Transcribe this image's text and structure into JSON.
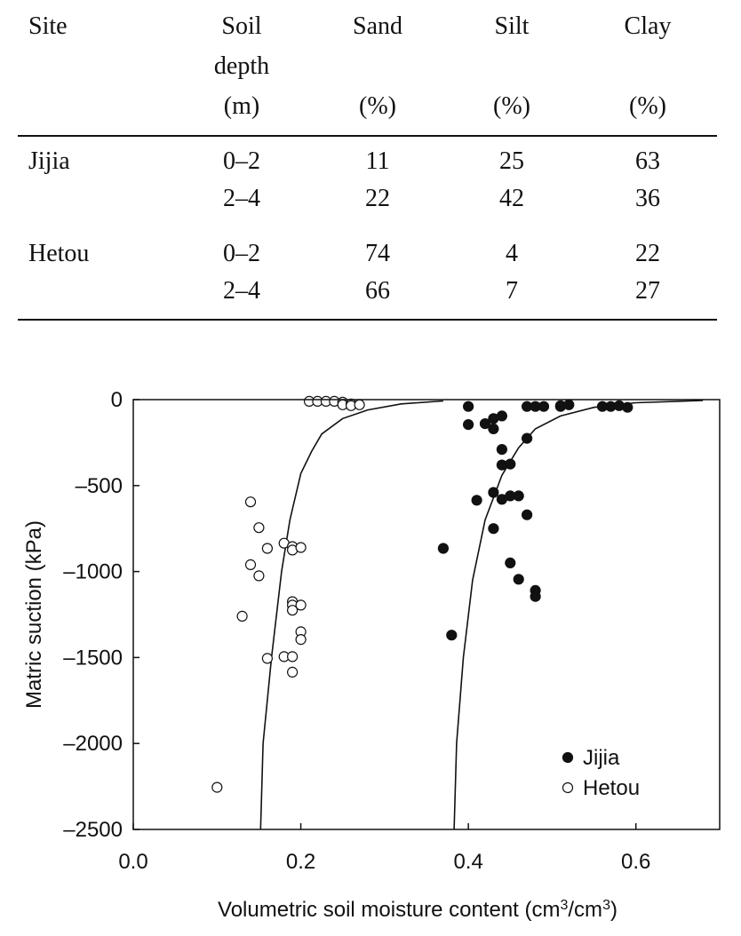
{
  "table": {
    "headers": {
      "site": "Site",
      "depth": [
        "Soil",
        "depth",
        "(m)"
      ],
      "sand": [
        "Sand",
        "(%)"
      ],
      "silt": [
        "Silt",
        "(%)"
      ],
      "clay": [
        "Clay",
        "(%)"
      ]
    },
    "rows": [
      {
        "site": "Jijia",
        "depth": "0–2",
        "sand": "11",
        "silt": "25",
        "clay": "63"
      },
      {
        "site": "",
        "depth": "2–4",
        "sand": "22",
        "silt": "42",
        "clay": "36"
      },
      {
        "site": "Hetou",
        "depth": "0–2",
        "sand": "74",
        "silt": "4",
        "clay": "22"
      },
      {
        "site": "",
        "depth": "2–4",
        "sand": "66",
        "silt": "7",
        "clay": "27"
      }
    ]
  },
  "chart_data": {
    "type": "scatter",
    "xlabel": "Volumetric soil moisture content (cm",
    "xlabel_sup1": "3",
    "xlabel_mid": "/cm",
    "xlabel_sup2": "3",
    "xlabel_end": ")",
    "ylabel": "Matric suction (kPa)",
    "xlim": [
      0.0,
      0.7
    ],
    "ylim": [
      -2500,
      0
    ],
    "x_ticks": [
      0.0,
      0.2,
      0.4,
      0.6
    ],
    "x_tick_labels": [
      "0.0",
      "0.2",
      "0.4",
      "0.6"
    ],
    "y_ticks": [
      0,
      -500,
      -1000,
      -1500,
      -2000,
      -2500
    ],
    "y_tick_labels": [
      "0",
      "–500",
      "–1000",
      "–1500",
      "–2000",
      "–2500"
    ],
    "legend_position": "bottom-right",
    "series": [
      {
        "name": "Jijia",
        "marker": "filled-circle",
        "points": [
          [
            0.4,
            -40
          ],
          [
            0.4,
            -145
          ],
          [
            0.42,
            -140
          ],
          [
            0.43,
            -110
          ],
          [
            0.43,
            -170
          ],
          [
            0.44,
            -95
          ],
          [
            0.44,
            -290
          ],
          [
            0.44,
            -380
          ],
          [
            0.45,
            -375
          ],
          [
            0.43,
            -540
          ],
          [
            0.44,
            -580
          ],
          [
            0.45,
            -560
          ],
          [
            0.46,
            -560
          ],
          [
            0.41,
            -585
          ],
          [
            0.47,
            -670
          ],
          [
            0.43,
            -750
          ],
          [
            0.37,
            -865
          ],
          [
            0.45,
            -950
          ],
          [
            0.46,
            -1045
          ],
          [
            0.48,
            -1110
          ],
          [
            0.48,
            -1145
          ],
          [
            0.38,
            -1370
          ],
          [
            0.47,
            -225
          ],
          [
            0.47,
            -40
          ],
          [
            0.48,
            -40
          ],
          [
            0.49,
            -40
          ],
          [
            0.51,
            -40
          ],
          [
            0.51,
            -35
          ],
          [
            0.52,
            -30
          ],
          [
            0.56,
            -40
          ],
          [
            0.57,
            -40
          ],
          [
            0.58,
            -35
          ],
          [
            0.59,
            -45
          ]
        ]
      },
      {
        "name": "Hetou",
        "marker": "open-circle",
        "points": [
          [
            0.21,
            -10
          ],
          [
            0.22,
            -10
          ],
          [
            0.23,
            -10
          ],
          [
            0.24,
            -10
          ],
          [
            0.25,
            -15
          ],
          [
            0.25,
            -30
          ],
          [
            0.26,
            -25
          ],
          [
            0.26,
            -35
          ],
          [
            0.27,
            -30
          ],
          [
            0.14,
            -595
          ],
          [
            0.15,
            -745
          ],
          [
            0.16,
            -865
          ],
          [
            0.14,
            -960
          ],
          [
            0.15,
            -1025
          ],
          [
            0.18,
            -835
          ],
          [
            0.19,
            -855
          ],
          [
            0.19,
            -875
          ],
          [
            0.2,
            -860
          ],
          [
            0.19,
            -1175
          ],
          [
            0.19,
            -1195
          ],
          [
            0.2,
            -1195
          ],
          [
            0.19,
            -1225
          ],
          [
            0.13,
            -1260
          ],
          [
            0.2,
            -1350
          ],
          [
            0.2,
            -1395
          ],
          [
            0.18,
            -1495
          ],
          [
            0.19,
            -1495
          ],
          [
            0.16,
            -1505
          ],
          [
            0.19,
            -1585
          ],
          [
            0.1,
            -2255
          ]
        ]
      }
    ],
    "fitted_curves": [
      {
        "for": "Hetou",
        "points": [
          [
            0.152,
            -2500
          ],
          [
            0.155,
            -2000
          ],
          [
            0.165,
            -1500
          ],
          [
            0.177,
            -1000
          ],
          [
            0.187,
            -700
          ],
          [
            0.2,
            -430
          ],
          [
            0.213,
            -300
          ],
          [
            0.225,
            -200
          ],
          [
            0.25,
            -110
          ],
          [
            0.28,
            -60
          ],
          [
            0.32,
            -25
          ],
          [
            0.37,
            -8
          ]
        ]
      },
      {
        "for": "Jijia",
        "points": [
          [
            0.383,
            -2500
          ],
          [
            0.386,
            -2000
          ],
          [
            0.394,
            -1500
          ],
          [
            0.405,
            -1050
          ],
          [
            0.42,
            -700
          ],
          [
            0.44,
            -440
          ],
          [
            0.46,
            -280
          ],
          [
            0.48,
            -170
          ],
          [
            0.51,
            -95
          ],
          [
            0.55,
            -45
          ],
          [
            0.6,
            -18
          ],
          [
            0.68,
            -5
          ]
        ]
      }
    ]
  }
}
